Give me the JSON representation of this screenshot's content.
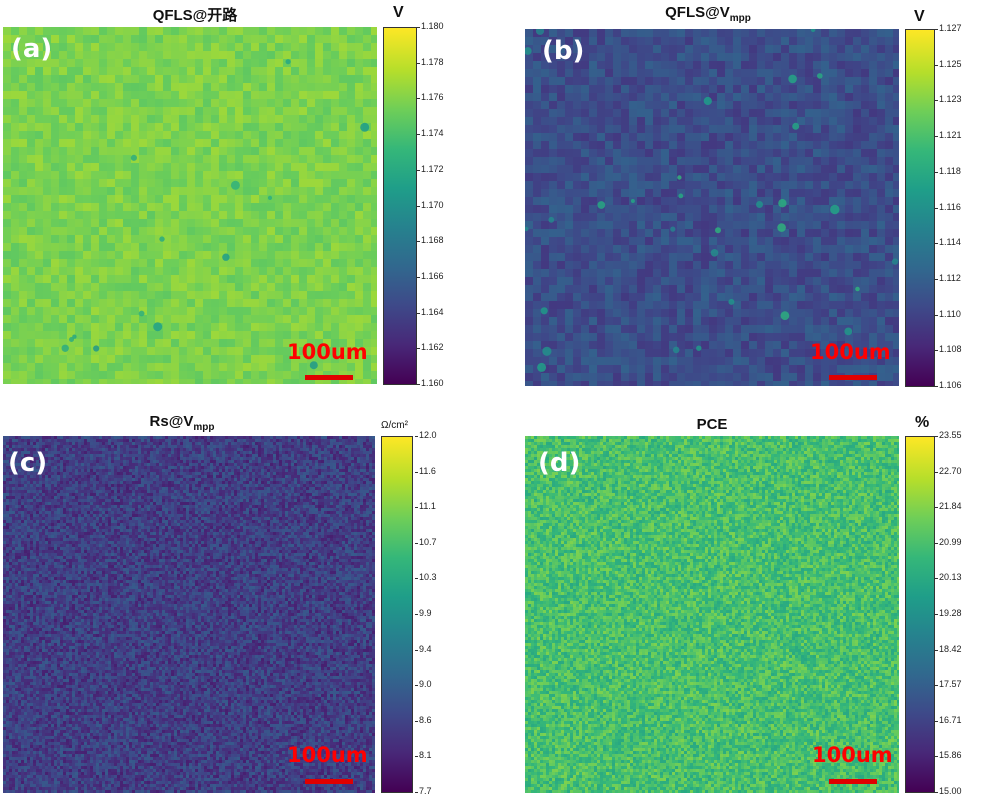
{
  "chart_data": [
    {
      "type": "heatmap",
      "panel_label": "(a)",
      "title": "QFLS@开路",
      "title_sub": "",
      "colorbar_unit": "V",
      "colormap": "viridis",
      "range": [
        1.16,
        1.18
      ],
      "ticks": [
        "1.180",
        "1.178",
        "1.176",
        "1.174",
        "1.172",
        "1.170",
        "1.168",
        "1.166",
        "1.164",
        "1.162",
        "1.160"
      ],
      "typical_value": 1.176,
      "scale_bar": "100um"
    },
    {
      "type": "heatmap",
      "panel_label": "(b)",
      "title": "QFLS@V",
      "title_sub": "mpp",
      "colorbar_unit": "V",
      "colormap": "viridis",
      "range": [
        1.106,
        1.127
      ],
      "ticks": [
        "1.127",
        "1.125",
        "1.123",
        "1.121",
        "1.118",
        "1.116",
        "1.114",
        "1.112",
        "1.110",
        "1.108",
        "1.106"
      ],
      "typical_value": 1.111,
      "scale_bar": "100um"
    },
    {
      "type": "heatmap",
      "panel_label": "(c)",
      "title": "Rs@V",
      "title_sub": "mpp",
      "colorbar_unit": "Ω/cm²",
      "colormap": "viridis",
      "range": [
        7.7,
        12.0
      ],
      "ticks": [
        "12.0",
        "11.6",
        "11.1",
        "10.7",
        "10.3",
        "9.9",
        "9.4",
        "9.0",
        "8.6",
        "8.1",
        "7.7"
      ],
      "typical_value": 8.5,
      "scale_bar": "100um"
    },
    {
      "type": "heatmap",
      "panel_label": "(d)",
      "title": "PCE",
      "title_sub": "",
      "colorbar_unit": "%",
      "colormap": "viridis",
      "range": [
        15.0,
        23.55
      ],
      "ticks": [
        "23.55",
        "22.70",
        "21.84",
        "20.99",
        "20.13",
        "19.28",
        "18.42",
        "17.57",
        "16.71",
        "15.86",
        "15.00"
      ],
      "typical_value": 21.0,
      "scale_bar": "100um"
    }
  ]
}
